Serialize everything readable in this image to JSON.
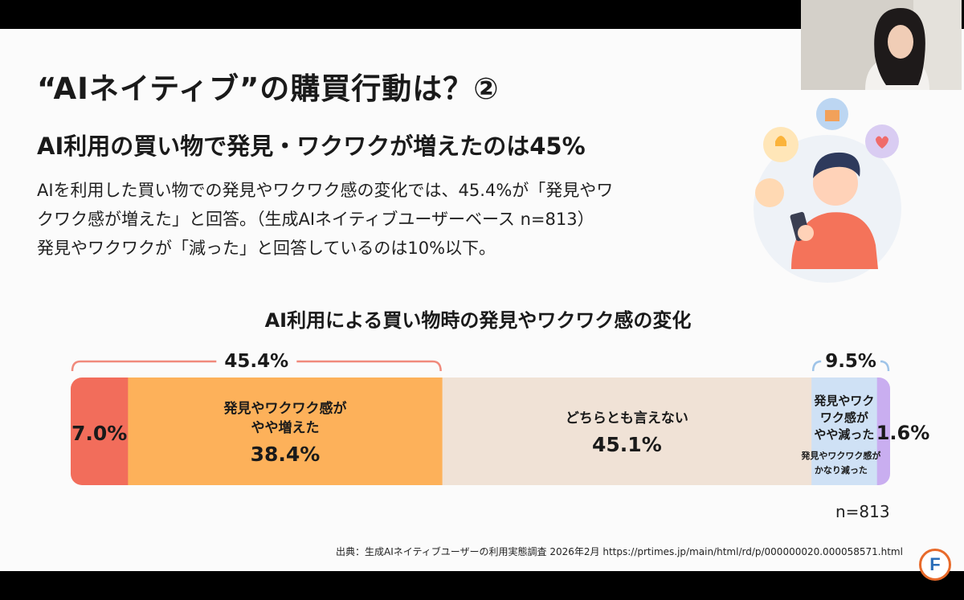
{
  "slide": {
    "title": "“AIネイティブ”の購買行動は？②",
    "subtitle": "AI利用の買い物で発見・ワクワクが増えたのは45%",
    "body_lines": [
      "AIを利用した買い物での発見やワクワク感の変化では、45.4%が「発見やワ",
      "クワク感が増えた」と回答。（生成AIネイティブユーザーベース n=813）",
      "発見やワクワクが「減った」と回答しているのは10%以下。"
    ],
    "sample_note": "n=813",
    "source": "出典：生成AIネイティブユーザーの利用実態調査 2026年2月 https://prtimes.jp/main/html/rd/p/000000020.000058571.html",
    "logo_letter": "F"
  },
  "chart_data": {
    "type": "bar",
    "orientation": "horizontal-stacked-100",
    "title": "AI利用による買い物時の発見やワクワク感の変化",
    "segments": [
      {
        "label": "",
        "value": 7.0,
        "value_label": "7.0%",
        "color": "#f26d5b"
      },
      {
        "label": "発見やワクワク感が\nやや増えた",
        "value": 38.4,
        "value_label": "38.4%",
        "color": "#fdb15a"
      },
      {
        "label": "どちらとも言えない",
        "value": 45.1,
        "value_label": "45.1%",
        "color": "#f0e2d6"
      },
      {
        "label": "発見やワク\nワク感が\nやや減った",
        "value": 8.0,
        "value_label": "",
        "color": "#cfe1f5"
      },
      {
        "label": "発見やワクワク感が\nかなり減った",
        "value": 1.6,
        "value_label": "1.6%",
        "color": "#c9aef0"
      }
    ],
    "brackets": [
      {
        "label": "45.4%",
        "from_segment": 0,
        "to_segment": 1,
        "color": "#f08a7c"
      },
      {
        "label": "9.5%",
        "from_segment": 3,
        "to_segment": 4,
        "color": "#9fc4e8"
      }
    ]
  },
  "colors": {
    "increase_strong": "#f26d5b",
    "increase_slight": "#fdb15a",
    "neutral": "#f0e2d6",
    "decrease_slight": "#cfe1f5",
    "decrease_strong": "#c9aef0"
  }
}
